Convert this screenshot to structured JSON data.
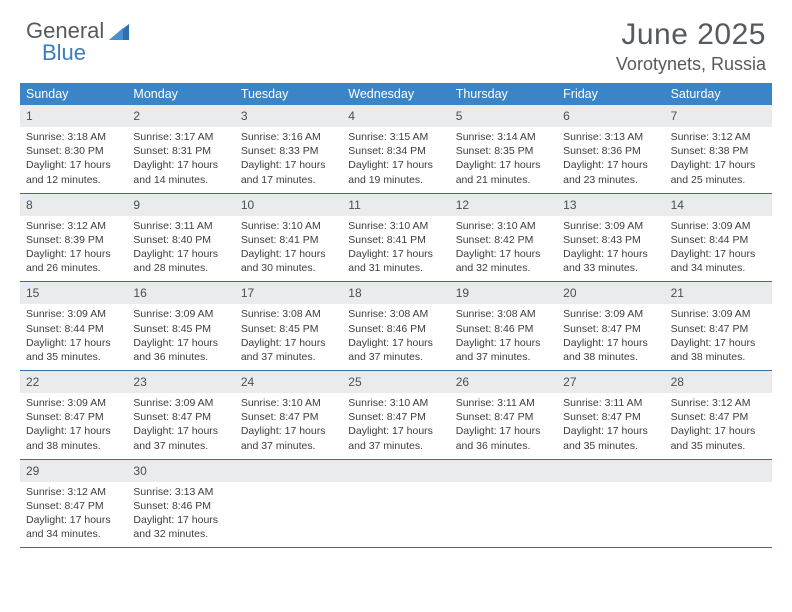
{
  "brand": {
    "part1": "General",
    "part2": "Blue"
  },
  "colors": {
    "header_bg": "#3a85c7",
    "header_text": "#ffffff",
    "daynum_bg": "#e9ebed",
    "week_divider": "#3a6a9a",
    "title_color": "#555a5f",
    "logo_general": "#555a5f",
    "logo_blue": "#3a7cc0"
  },
  "title": {
    "month": "June 2025",
    "location": "Vorotynets, Russia"
  },
  "day_names": [
    "Sunday",
    "Monday",
    "Tuesday",
    "Wednesday",
    "Thursday",
    "Friday",
    "Saturday"
  ],
  "weeks": [
    [
      {
        "n": "1",
        "sunrise": "Sunrise: 3:18 AM",
        "sunset": "Sunset: 8:30 PM",
        "daylight": "Daylight: 17 hours and 12 minutes."
      },
      {
        "n": "2",
        "sunrise": "Sunrise: 3:17 AM",
        "sunset": "Sunset: 8:31 PM",
        "daylight": "Daylight: 17 hours and 14 minutes."
      },
      {
        "n": "3",
        "sunrise": "Sunrise: 3:16 AM",
        "sunset": "Sunset: 8:33 PM",
        "daylight": "Daylight: 17 hours and 17 minutes."
      },
      {
        "n": "4",
        "sunrise": "Sunrise: 3:15 AM",
        "sunset": "Sunset: 8:34 PM",
        "daylight": "Daylight: 17 hours and 19 minutes."
      },
      {
        "n": "5",
        "sunrise": "Sunrise: 3:14 AM",
        "sunset": "Sunset: 8:35 PM",
        "daylight": "Daylight: 17 hours and 21 minutes."
      },
      {
        "n": "6",
        "sunrise": "Sunrise: 3:13 AM",
        "sunset": "Sunset: 8:36 PM",
        "daylight": "Daylight: 17 hours and 23 minutes."
      },
      {
        "n": "7",
        "sunrise": "Sunrise: 3:12 AM",
        "sunset": "Sunset: 8:38 PM",
        "daylight": "Daylight: 17 hours and 25 minutes."
      }
    ],
    [
      {
        "n": "8",
        "sunrise": "Sunrise: 3:12 AM",
        "sunset": "Sunset: 8:39 PM",
        "daylight": "Daylight: 17 hours and 26 minutes."
      },
      {
        "n": "9",
        "sunrise": "Sunrise: 3:11 AM",
        "sunset": "Sunset: 8:40 PM",
        "daylight": "Daylight: 17 hours and 28 minutes."
      },
      {
        "n": "10",
        "sunrise": "Sunrise: 3:10 AM",
        "sunset": "Sunset: 8:41 PM",
        "daylight": "Daylight: 17 hours and 30 minutes."
      },
      {
        "n": "11",
        "sunrise": "Sunrise: 3:10 AM",
        "sunset": "Sunset: 8:41 PM",
        "daylight": "Daylight: 17 hours and 31 minutes."
      },
      {
        "n": "12",
        "sunrise": "Sunrise: 3:10 AM",
        "sunset": "Sunset: 8:42 PM",
        "daylight": "Daylight: 17 hours and 32 minutes."
      },
      {
        "n": "13",
        "sunrise": "Sunrise: 3:09 AM",
        "sunset": "Sunset: 8:43 PM",
        "daylight": "Daylight: 17 hours and 33 minutes."
      },
      {
        "n": "14",
        "sunrise": "Sunrise: 3:09 AM",
        "sunset": "Sunset: 8:44 PM",
        "daylight": "Daylight: 17 hours and 34 minutes."
      }
    ],
    [
      {
        "n": "15",
        "sunrise": "Sunrise: 3:09 AM",
        "sunset": "Sunset: 8:44 PM",
        "daylight": "Daylight: 17 hours and 35 minutes."
      },
      {
        "n": "16",
        "sunrise": "Sunrise: 3:09 AM",
        "sunset": "Sunset: 8:45 PM",
        "daylight": "Daylight: 17 hours and 36 minutes."
      },
      {
        "n": "17",
        "sunrise": "Sunrise: 3:08 AM",
        "sunset": "Sunset: 8:45 PM",
        "daylight": "Daylight: 17 hours and 37 minutes."
      },
      {
        "n": "18",
        "sunrise": "Sunrise: 3:08 AM",
        "sunset": "Sunset: 8:46 PM",
        "daylight": "Daylight: 17 hours and 37 minutes."
      },
      {
        "n": "19",
        "sunrise": "Sunrise: 3:08 AM",
        "sunset": "Sunset: 8:46 PM",
        "daylight": "Daylight: 17 hours and 37 minutes."
      },
      {
        "n": "20",
        "sunrise": "Sunrise: 3:09 AM",
        "sunset": "Sunset: 8:47 PM",
        "daylight": "Daylight: 17 hours and 38 minutes."
      },
      {
        "n": "21",
        "sunrise": "Sunrise: 3:09 AM",
        "sunset": "Sunset: 8:47 PM",
        "daylight": "Daylight: 17 hours and 38 minutes."
      }
    ],
    [
      {
        "n": "22",
        "sunrise": "Sunrise: 3:09 AM",
        "sunset": "Sunset: 8:47 PM",
        "daylight": "Daylight: 17 hours and 38 minutes."
      },
      {
        "n": "23",
        "sunrise": "Sunrise: 3:09 AM",
        "sunset": "Sunset: 8:47 PM",
        "daylight": "Daylight: 17 hours and 37 minutes."
      },
      {
        "n": "24",
        "sunrise": "Sunrise: 3:10 AM",
        "sunset": "Sunset: 8:47 PM",
        "daylight": "Daylight: 17 hours and 37 minutes."
      },
      {
        "n": "25",
        "sunrise": "Sunrise: 3:10 AM",
        "sunset": "Sunset: 8:47 PM",
        "daylight": "Daylight: 17 hours and 37 minutes."
      },
      {
        "n": "26",
        "sunrise": "Sunrise: 3:11 AM",
        "sunset": "Sunset: 8:47 PM",
        "daylight": "Daylight: 17 hours and 36 minutes."
      },
      {
        "n": "27",
        "sunrise": "Sunrise: 3:11 AM",
        "sunset": "Sunset: 8:47 PM",
        "daylight": "Daylight: 17 hours and 35 minutes."
      },
      {
        "n": "28",
        "sunrise": "Sunrise: 3:12 AM",
        "sunset": "Sunset: 8:47 PM",
        "daylight": "Daylight: 17 hours and 35 minutes."
      }
    ],
    [
      {
        "n": "29",
        "sunrise": "Sunrise: 3:12 AM",
        "sunset": "Sunset: 8:47 PM",
        "daylight": "Daylight: 17 hours and 34 minutes."
      },
      {
        "n": "30",
        "sunrise": "Sunrise: 3:13 AM",
        "sunset": "Sunset: 8:46 PM",
        "daylight": "Daylight: 17 hours and 32 minutes."
      },
      {
        "empty": true
      },
      {
        "empty": true
      },
      {
        "empty": true
      },
      {
        "empty": true
      },
      {
        "empty": true
      }
    ]
  ]
}
